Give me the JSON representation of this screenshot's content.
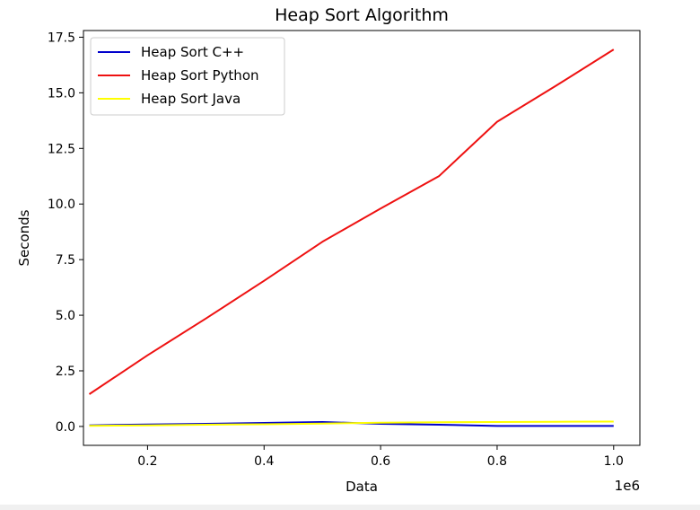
{
  "chart_data": {
    "type": "line",
    "title": "Heap Sort Algorithm",
    "xlabel": "Data",
    "ylabel": "Seconds",
    "x_offset_text": "1e6",
    "xlim": [
      0.09,
      1.045
    ],
    "ylim": [
      -0.85,
      17.8
    ],
    "xticks": [
      0.2,
      0.4,
      0.6,
      0.8,
      1.0
    ],
    "xtick_labels": [
      "0.2",
      "0.4",
      "0.6",
      "0.8",
      "1.0"
    ],
    "yticks": [
      0.0,
      2.5,
      5.0,
      7.5,
      10.0,
      12.5,
      15.0,
      17.5
    ],
    "ytick_labels": [
      "0.0",
      "2.5",
      "5.0",
      "7.5",
      "10.0",
      "12.5",
      "15.0",
      "17.5"
    ],
    "grid": false,
    "legend_position": "top-left",
    "series": [
      {
        "name": "Heap Sort C++",
        "color": "#0000cc",
        "x": [
          0.1,
          0.2,
          0.3,
          0.4,
          0.5,
          0.6,
          0.7,
          0.8,
          0.9,
          1.0
        ],
        "y": [
          0.05,
          0.09,
          0.12,
          0.16,
          0.2,
          0.12,
          0.08,
          0.02,
          0.02,
          0.02
        ]
      },
      {
        "name": "Heap Sort Python",
        "color": "#ee1111",
        "x": [
          0.1,
          0.2,
          0.3,
          0.4,
          0.5,
          0.6,
          0.7,
          0.8,
          0.9,
          1.0
        ],
        "y": [
          1.45,
          3.2,
          4.85,
          6.55,
          8.3,
          9.8,
          11.25,
          13.7,
          15.3,
          16.95
        ]
      },
      {
        "name": "Heap Sort Java",
        "color": "#ffff00",
        "x": [
          0.1,
          0.2,
          0.3,
          0.4,
          0.5,
          0.6,
          0.7,
          0.8,
          0.9,
          1.0
        ],
        "y": [
          0.03,
          0.05,
          0.08,
          0.1,
          0.13,
          0.17,
          0.19,
          0.2,
          0.21,
          0.22
        ]
      }
    ]
  }
}
